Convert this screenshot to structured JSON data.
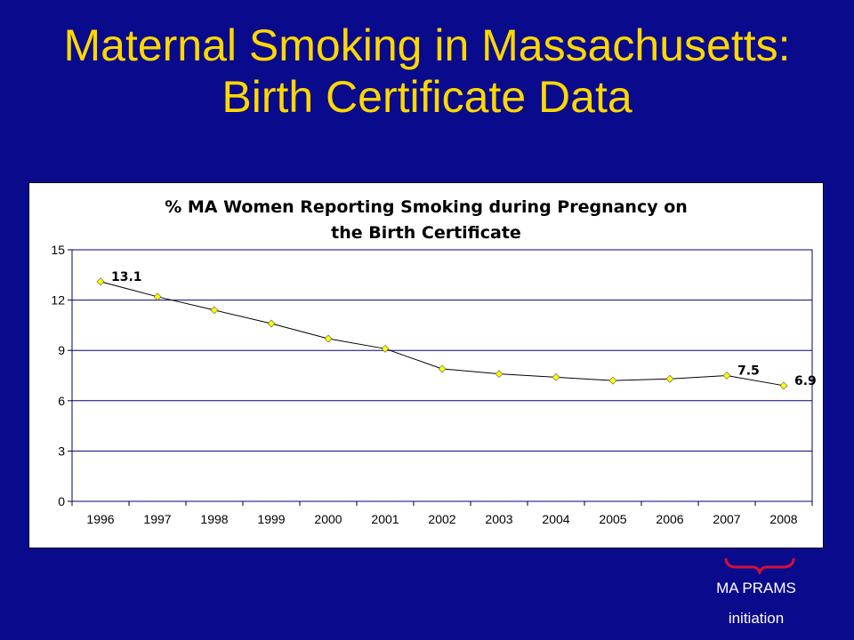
{
  "slide": {
    "title_line1": "Maternal Smoking in Massachusetts:",
    "title_line2": "Birth Certificate Data"
  },
  "annotation": {
    "line1": "MA PRAMS",
    "line2": "initiation",
    "bracket_color": "#d0103a"
  },
  "colors": {
    "background": "#0a0a8c",
    "title": "#ffd800",
    "plot_border": "#000080",
    "series_line": "#000000",
    "marker": "#ffff00",
    "label": "#000000"
  },
  "chart_data": {
    "type": "line",
    "title_lines": [
      "% MA Women Reporting Smoking during Pregnancy on",
      "the Birth Certificate"
    ],
    "categories": [
      "1996",
      "1997",
      "1998",
      "1999",
      "2000",
      "2001",
      "2002",
      "2003",
      "2004",
      "2005",
      "2006",
      "2007",
      "2008"
    ],
    "series": [
      {
        "values": [
          13.1,
          12.2,
          11.4,
          10.6,
          9.7,
          9.1,
          7.9,
          7.6,
          7.4,
          7.2,
          7.3,
          7.5,
          6.9
        ],
        "data_labels": {
          "0": "13.1",
          "11": "7.5",
          "12": "6.9"
        }
      }
    ],
    "xlabel": "",
    "ylabel": "",
    "ylim": [
      0,
      15
    ],
    "yticks": [
      0,
      3,
      6,
      9,
      12,
      15
    ],
    "grid": true,
    "legend": "none"
  }
}
